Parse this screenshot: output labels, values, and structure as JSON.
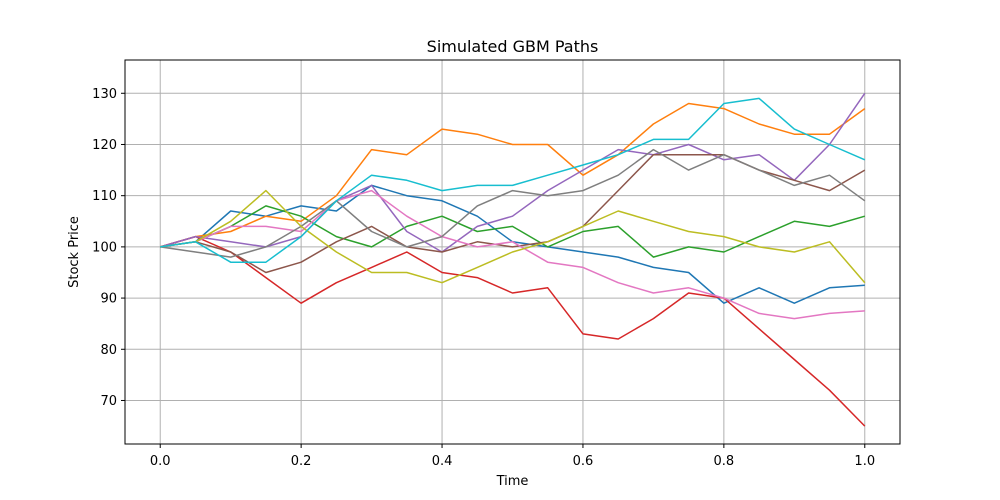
{
  "chart_data": {
    "type": "line",
    "title": "Simulated GBM Paths",
    "xlabel": "Time",
    "ylabel": "Stock Price",
    "xlim": [
      -0.05,
      1.05
    ],
    "ylim": [
      61.5,
      136.5
    ],
    "xticks": [
      0.0,
      0.2,
      0.4,
      0.6,
      0.8,
      1.0
    ],
    "xtick_labels": [
      "0.0",
      "0.2",
      "0.4",
      "0.6",
      "0.8",
      "1.0"
    ],
    "yticks": [
      70,
      80,
      90,
      100,
      110,
      120,
      130
    ],
    "ytick_labels": [
      "70",
      "80",
      "90",
      "100",
      "110",
      "120",
      "130"
    ],
    "grid": true,
    "x": [
      0.0,
      0.05,
      0.1,
      0.15,
      0.2,
      0.25,
      0.3,
      0.35,
      0.4,
      0.45,
      0.5,
      0.55,
      0.6,
      0.65,
      0.7,
      0.75,
      0.8,
      0.85,
      0.9,
      0.95,
      1.0
    ],
    "series": [
      {
        "color": "#1f77b4",
        "values": [
          100,
          101,
          107,
          106,
          108,
          107,
          112,
          110,
          109,
          106,
          101,
          100,
          99,
          98,
          96,
          95,
          89,
          92,
          89,
          92,
          92.5
        ]
      },
      {
        "color": "#ff7f0e",
        "values": [
          100,
          102,
          103,
          106,
          105,
          110,
          119,
          118,
          123,
          122,
          120,
          120,
          114,
          118,
          124,
          128,
          127,
          124,
          122,
          122,
          127
        ]
      },
      {
        "color": "#2ca02c",
        "values": [
          100,
          101,
          104,
          108,
          106,
          102,
          100,
          104,
          106,
          103,
          104,
          100,
          103,
          104,
          98,
          100,
          99,
          102,
          105,
          104,
          106
        ]
      },
      {
        "color": "#d62728",
        "values": [
          100,
          102,
          99,
          94,
          89,
          93,
          96,
          99,
          95,
          94,
          91,
          92,
          83,
          82,
          86,
          91,
          90,
          84,
          78,
          72,
          65
        ]
      },
      {
        "color": "#9467bd",
        "values": [
          100,
          102,
          101,
          100,
          102,
          109,
          112,
          103,
          99,
          104,
          106,
          111,
          115,
          119,
          118,
          120,
          117,
          118,
          113,
          120,
          130
        ]
      },
      {
        "color": "#8c564b",
        "values": [
          100,
          101,
          99,
          95,
          97,
          101,
          104,
          100,
          99,
          101,
          100,
          101,
          104,
          111,
          118,
          118,
          118,
          115,
          113,
          111,
          115
        ]
      },
      {
        "color": "#e377c2",
        "values": [
          100,
          101,
          104,
          104,
          103,
          109,
          111,
          106,
          102,
          100,
          101,
          97,
          96,
          93,
          91,
          92,
          90,
          87,
          86,
          87,
          87.5
        ]
      },
      {
        "color": "#7f7f7f",
        "values": [
          100,
          99,
          98,
          100,
          104,
          109,
          103,
          100,
          102,
          108,
          111,
          110,
          111,
          114,
          119,
          115,
          118,
          115,
          112,
          114,
          109
        ]
      },
      {
        "color": "#bcbd22",
        "values": [
          100,
          101,
          105,
          111,
          104,
          99,
          95,
          95,
          93,
          96,
          99,
          101,
          104,
          107,
          105,
          103,
          102,
          100,
          99,
          101,
          93
        ]
      },
      {
        "color": "#17becf",
        "values": [
          100,
          101,
          97,
          97,
          102,
          109,
          114,
          113,
          111,
          112,
          112,
          114,
          116,
          118,
          121,
          121,
          128,
          129,
          123,
          120,
          117
        ]
      }
    ]
  }
}
